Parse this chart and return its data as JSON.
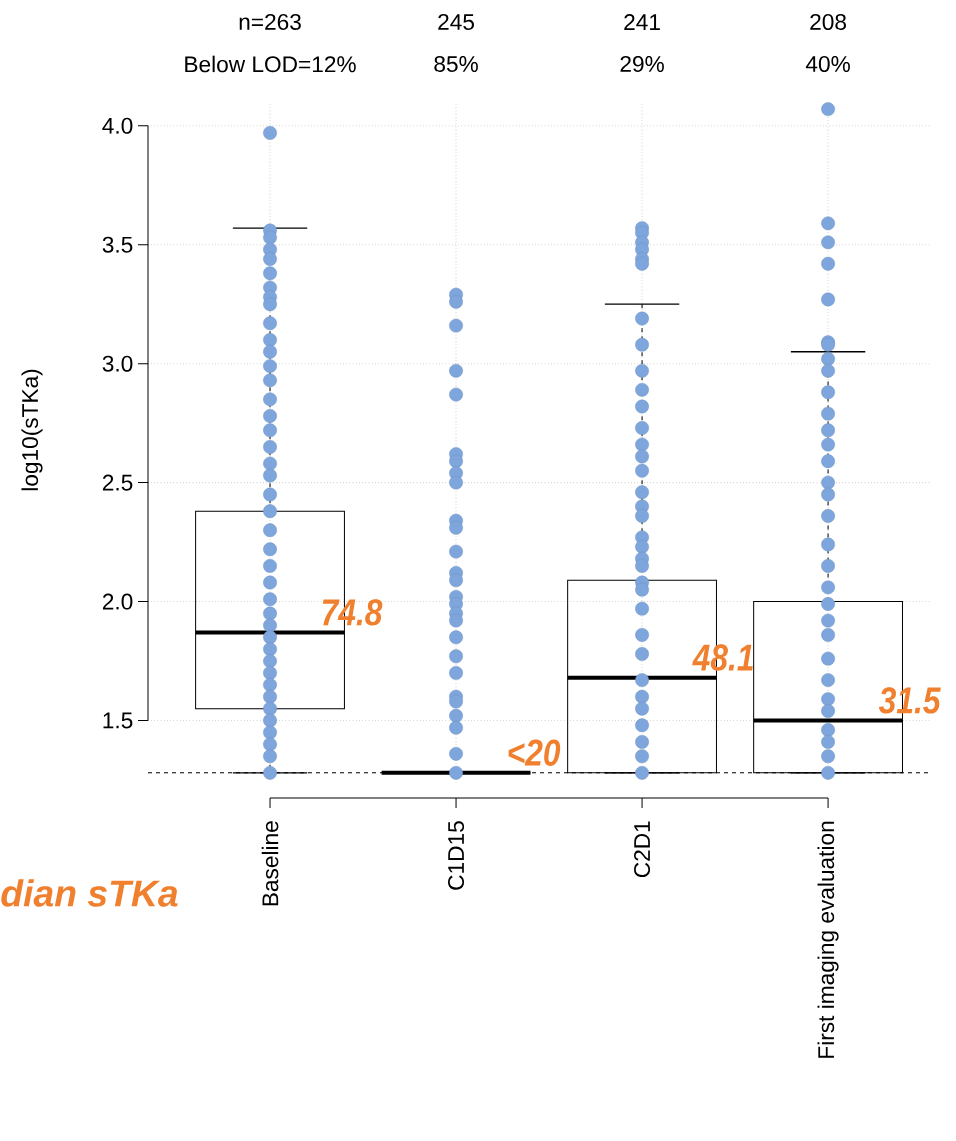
{
  "chart_data": {
    "type": "box",
    "categories": [
      "Baseline",
      "C1D15",
      "C2D1",
      "First imaging evaluation"
    ],
    "ylabel": "log10(sTKa)",
    "ylim": [
      1.25,
      4.1
    ],
    "yticks": [
      1.5,
      {
        "value": 2,
        "label": "2.0"
      },
      2.5,
      {
        "value": 3,
        "label": "3.0"
      },
      3.5,
      {
        "value": 4,
        "label": "4.0"
      }
    ],
    "grid": true,
    "boxes": [
      {
        "low": 1.28,
        "q1": 1.55,
        "median": 1.87,
        "q3": 2.38,
        "high": 3.57
      },
      {
        "low": 1.28,
        "q1": 1.28,
        "median": 1.28,
        "q3": 1.28,
        "high": 1.28
      },
      {
        "low": 1.28,
        "q1": 1.28,
        "median": 1.68,
        "q3": 2.09,
        "high": 3.25
      },
      {
        "low": 1.28,
        "q1": 1.28,
        "median": 1.5,
        "q3": 2.0,
        "high": 3.05
      }
    ],
    "series": [
      {
        "type": "scatter",
        "color": "#7ea6dc",
        "marker": "circle",
        "x": [
          "Baseline",
          "Baseline",
          "Baseline",
          "Baseline",
          "Baseline",
          "Baseline",
          "Baseline",
          "Baseline",
          "Baseline",
          "Baseline",
          "Baseline",
          "Baseline",
          "Baseline",
          "Baseline",
          "Baseline",
          "Baseline",
          "Baseline",
          "Baseline",
          "Baseline",
          "Baseline",
          "Baseline",
          "Baseline",
          "Baseline",
          "Baseline",
          "Baseline",
          "Baseline",
          "Baseline",
          "Baseline",
          "Baseline",
          "Baseline",
          "Baseline",
          "Baseline",
          "Baseline",
          "Baseline",
          "Baseline",
          "Baseline",
          "Baseline",
          "Baseline",
          "Baseline",
          "Baseline",
          "Baseline",
          "C1D15",
          "C1D15",
          "C1D15",
          "C1D15",
          "C1D15",
          "C1D15",
          "C1D15",
          "C1D15",
          "C1D15",
          "C1D15",
          "C1D15",
          "C1D15",
          "C1D15",
          "C1D15",
          "C1D15",
          "C1D15",
          "C1D15",
          "C1D15",
          "C1D15",
          "C1D15",
          "C1D15",
          "C1D15",
          "C1D15",
          "C1D15",
          "C1D15",
          "C1D15",
          "C1D15",
          "C2D1",
          "C2D1",
          "C2D1",
          "C2D1",
          "C2D1",
          "C2D1",
          "C2D1",
          "C2D1",
          "C2D1",
          "C2D1",
          "C2D1",
          "C2D1",
          "C2D1",
          "C2D1",
          "C2D1",
          "C2D1",
          "C2D1",
          "C2D1",
          "C2D1",
          "C2D1",
          "C2D1",
          "C2D1",
          "C2D1",
          "C2D1",
          "C2D1",
          "C2D1",
          "C2D1",
          "C2D1",
          "C2D1",
          "C2D1",
          "C2D1",
          "C2D1",
          "C2D1",
          "C2D1",
          "First imaging evaluation",
          "First imaging evaluation",
          "First imaging evaluation",
          "First imaging evaluation",
          "First imaging evaluation",
          "First imaging evaluation",
          "First imaging evaluation",
          "First imaging evaluation",
          "First imaging evaluation",
          "First imaging evaluation",
          "First imaging evaluation",
          "First imaging evaluation",
          "First imaging evaluation",
          "First imaging evaluation",
          "First imaging evaluation",
          "First imaging evaluation",
          "First imaging evaluation",
          "First imaging evaluation",
          "First imaging evaluation",
          "First imaging evaluation",
          "First imaging evaluation",
          "First imaging evaluation",
          "First imaging evaluation",
          "First imaging evaluation",
          "First imaging evaluation",
          "First imaging evaluation",
          "First imaging evaluation",
          "First imaging evaluation",
          "First imaging evaluation",
          "First imaging evaluation",
          "First imaging evaluation"
        ],
        "values": [
          3.97,
          3.56,
          3.53,
          3.48,
          3.44,
          3.38,
          3.32,
          3.28,
          3.25,
          3.17,
          3.1,
          3.05,
          2.99,
          2.93,
          2.85,
          2.78,
          2.72,
          2.65,
          2.58,
          2.53,
          2.45,
          2.38,
          2.3,
          2.22,
          2.15,
          2.08,
          2.01,
          1.95,
          1.9,
          1.85,
          1.8,
          1.75,
          1.7,
          1.65,
          1.6,
          1.55,
          1.5,
          1.45,
          1.4,
          1.35,
          1.28,
          3.29,
          3.26,
          3.16,
          2.97,
          2.87,
          2.62,
          2.59,
          2.54,
          2.5,
          2.34,
          2.31,
          2.21,
          2.12,
          2.09,
          2.02,
          1.99,
          1.95,
          1.92,
          1.85,
          1.77,
          1.7,
          1.6,
          1.58,
          1.52,
          1.47,
          1.36,
          1.28,
          3.57,
          3.55,
          3.51,
          3.48,
          3.44,
          3.42,
          3.19,
          3.08,
          2.97,
          2.89,
          2.82,
          2.73,
          2.66,
          2.61,
          2.55,
          2.46,
          2.4,
          2.36,
          2.27,
          2.23,
          2.18,
          2.15,
          2.08,
          2.05,
          1.97,
          1.86,
          1.78,
          1.67,
          1.6,
          1.55,
          1.48,
          1.41,
          1.35,
          1.28,
          4.07,
          3.59,
          3.51,
          3.42,
          3.27,
          3.09,
          3.08,
          3.02,
          2.97,
          2.88,
          2.79,
          2.72,
          2.66,
          2.59,
          2.5,
          2.45,
          2.36,
          2.24,
          2.15,
          2.06,
          1.99,
          1.92,
          1.86,
          1.76,
          1.67,
          1.59,
          1.54,
          1.46,
          1.41,
          1.35,
          1.28
        ]
      }
    ],
    "ref_lines": [
      {
        "axis": "y",
        "value": 1.28,
        "color": "#000000",
        "line_style": "dashed"
      }
    ],
    "annotations": [
      "n=263",
      "245",
      "241",
      "208",
      "Below LOD=12%",
      "85%",
      "29%",
      "40%",
      {
        "text": "74.8",
        "x": "Baseline",
        "y": 1.87
      },
      {
        "text": "<20",
        "x": "C1D15",
        "y": 1.28
      },
      {
        "text": "48.1",
        "x": "C2D1",
        "y": 1.68
      },
      {
        "text": "31.5",
        "x": "First imaging evaluation",
        "y": 1.5
      },
      "dian sTKa"
    ]
  }
}
